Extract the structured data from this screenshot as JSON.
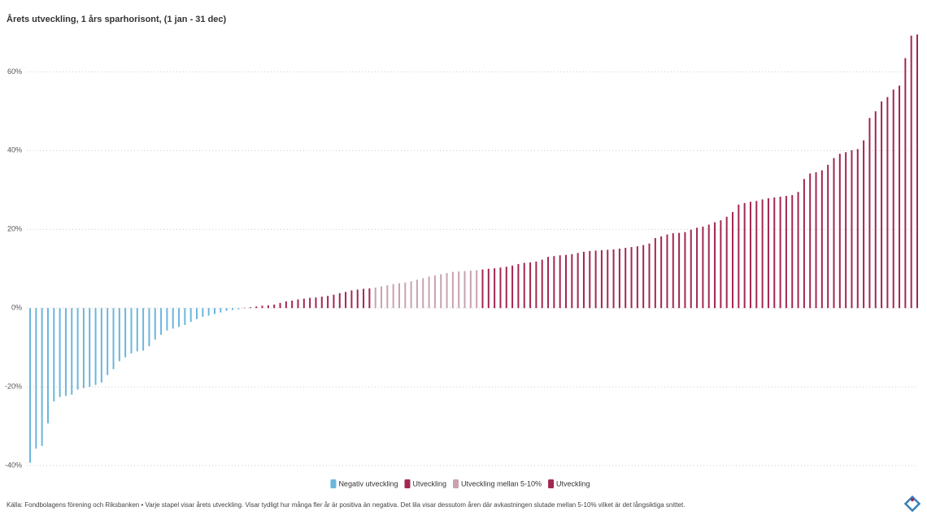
{
  "chart_data": {
    "type": "bar",
    "title": "Årets utveckling, 1 års sparhorisont, (1 jan - 31 dec)",
    "caption": "Källa: Fondbolagens förening och Riksbanken • Varje stapel visar årets utveckling. Visar tydligt hur många fler år är positiva än negativa. Det lila visar dessutom åren där avkastningen slutade mellan 5-10% vilket är det långsiktiga snittet.",
    "ylim": [
      -40,
      70
    ],
    "yticks": [
      {
        "value": -40,
        "label": "-40%"
      },
      {
        "value": -20,
        "label": "-20%"
      },
      {
        "value": 0,
        "label": "0%"
      },
      {
        "value": 20,
        "label": "20%"
      },
      {
        "value": 40,
        "label": "40%"
      },
      {
        "value": 60,
        "label": "60%"
      }
    ],
    "grid": true,
    "series": [
      {
        "name": "Negativ utveckling",
        "color": "#6bb6dc",
        "values": [
          -39.3,
          -35.7,
          -35,
          -29.3,
          -23.7,
          -22.6,
          -22.3,
          -22,
          -20.7,
          -20.3,
          -20,
          -19.5,
          -18.9,
          -17,
          -15.5,
          -13.5,
          -12.5,
          -11.5,
          -11,
          -10.8,
          -9.7,
          -8,
          -6.8,
          -5.7,
          -5.2,
          -4.8,
          -4.3,
          -3.5,
          -2.8,
          -2.2,
          -1.9,
          -1.5,
          -1.1,
          -0.7,
          -0.5,
          -0.3
        ]
      },
      {
        "name": "Utveckling",
        "color": "#a3274f",
        "values": [
          0.1,
          0.2,
          0.4,
          0.6,
          0.7,
          0.9,
          1.3,
          1.7,
          1.9,
          2.2,
          2.4,
          2.6,
          2.7,
          2.9,
          3.1,
          3.4,
          3.8,
          4.1,
          4.5,
          4.7,
          4.9,
          5.0
        ]
      },
      {
        "name": "Utveckling mellan 5-10%",
        "color": "#c8a2ae",
        "values": [
          5.2,
          5.5,
          5.8,
          6.1,
          6.3,
          6.5,
          6.8,
          7.2,
          7.6,
          8.0,
          8.3,
          8.6,
          8.9,
          9.2,
          9.3,
          9.4,
          9.5,
          9.6
        ]
      },
      {
        "name": "Utveckling",
        "color": "#a3274f",
        "values": [
          9.8,
          10.0,
          10.1,
          10.3,
          10.5,
          10.8,
          11.2,
          11.5,
          11.6,
          11.8,
          12.3,
          13.0,
          13.2,
          13.4,
          13.5,
          13.7,
          14.0,
          14.3,
          14.5,
          14.6,
          14.7,
          14.8,
          14.9,
          15.1,
          15.3,
          15.5,
          15.7,
          16.0,
          16.4,
          17.8,
          18.2,
          18.7,
          19.0,
          19.1,
          19.3,
          19.9,
          20.4,
          20.7,
          21.2,
          21.8,
          22.3,
          23.2,
          24.4,
          26.3,
          26.7,
          27.0,
          27.2,
          27.6,
          27.9,
          28.1,
          28.3,
          28.5,
          28.7,
          29.5,
          32.8,
          34.2,
          34.5,
          35.0,
          36.4,
          38.1,
          39.2,
          39.6,
          40.1,
          40.4,
          42.6,
          48.3,
          50.0,
          52.5,
          53.6,
          55.5,
          56.5,
          63.5,
          69.2,
          69.5
        ]
      }
    ]
  }
}
